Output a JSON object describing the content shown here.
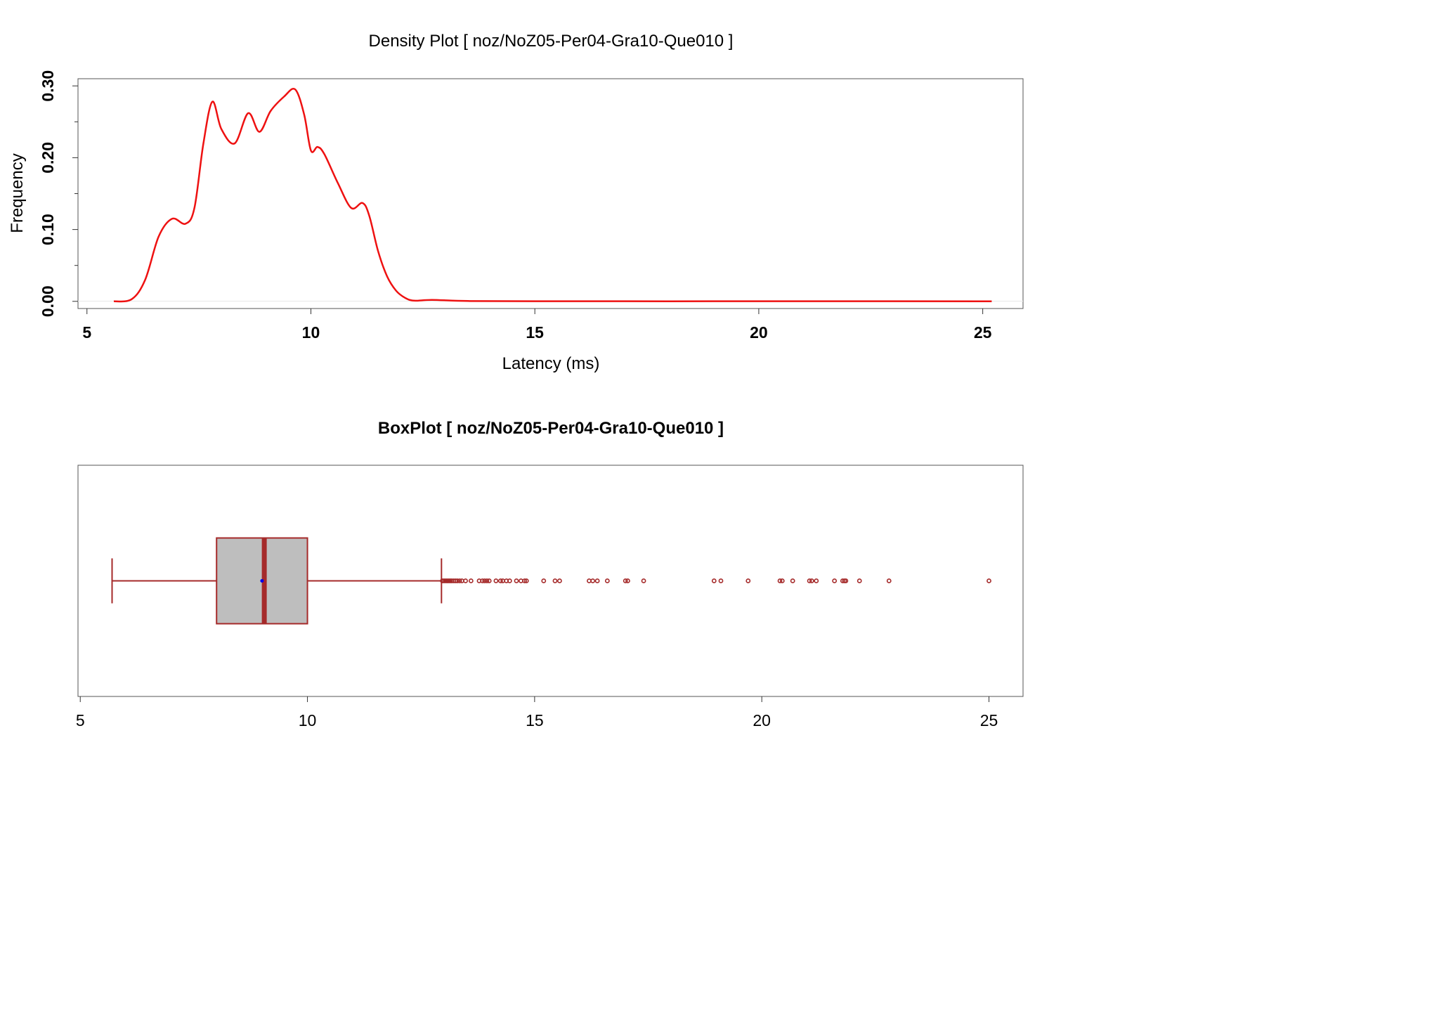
{
  "chart_data": [
    {
      "type": "line",
      "title": "Density Plot [ noz/NoZ05-Per04-Gra10-Que010 ]",
      "xlabel": "Latency (ms)",
      "ylabel": "Frequency",
      "xlim": [
        4.8,
        25.9
      ],
      "ylim": [
        -0.01,
        0.31
      ],
      "x_ticks": [
        5,
        10,
        15,
        20,
        25
      ],
      "y_ticks": [
        0.0,
        0.1,
        0.2,
        0.3
      ],
      "y_tick_labels": [
        "0.00",
        "0.10",
        "0.20",
        "0.30"
      ],
      "y_minor_ticks": [
        0.05,
        0.15,
        0.25
      ],
      "grid": false,
      "line_color": "#ee1111",
      "series": [
        {
          "x": [
            5.6,
            6.0,
            6.3,
            6.6,
            6.9,
            7.2,
            7.4,
            7.6,
            7.8,
            8.0,
            8.3,
            8.6,
            8.85,
            9.1,
            9.4,
            9.65,
            9.85,
            10.0,
            10.15,
            10.3,
            10.6,
            10.9,
            11.15,
            11.3,
            11.5,
            11.7,
            11.9,
            12.1,
            12.3,
            12.7,
            13.5,
            15.0,
            18.0,
            21.0,
            25.2
          ],
          "y": [
            0.0,
            0.003,
            0.03,
            0.09,
            0.115,
            0.108,
            0.13,
            0.22,
            0.278,
            0.24,
            0.22,
            0.262,
            0.236,
            0.265,
            0.285,
            0.295,
            0.26,
            0.21,
            0.215,
            0.205,
            0.165,
            0.13,
            0.137,
            0.12,
            0.07,
            0.035,
            0.015,
            0.005,
            0.001,
            0.002,
            0.0005,
            0.0002,
            0.0001,
            0.0002,
            0.0
          ]
        }
      ]
    },
    {
      "type": "boxplot",
      "title": "BoxPlot [ noz/NoZ05-Per04-Gra10-Que010 ]",
      "xlim": [
        4.95,
        25.75
      ],
      "x_ticks": [
        5,
        10,
        15,
        20,
        25
      ],
      "whisker_low": 5.7,
      "q1": 8.0,
      "median": 9.05,
      "mean": 9.0,
      "q3": 10.0,
      "whisker_high": 12.95,
      "outliers": [
        12.97,
        13.0,
        13.03,
        13.06,
        13.09,
        13.12,
        13.15,
        13.18,
        13.22,
        13.26,
        13.3,
        13.35,
        13.4,
        13.48,
        13.6,
        13.78,
        13.85,
        13.9,
        13.95,
        14.0,
        14.15,
        14.25,
        14.3,
        14.38,
        14.45,
        14.6,
        14.7,
        14.78,
        14.82,
        15.2,
        15.45,
        15.55,
        16.2,
        16.28,
        16.38,
        16.6,
        17.0,
        17.05,
        17.4,
        18.95,
        19.1,
        19.7,
        20.4,
        20.45,
        20.68,
        21.05,
        21.1,
        21.2,
        21.6,
        21.78,
        21.82,
        21.85,
        22.15,
        22.8,
        25.0
      ],
      "box_fill": "#bebebe",
      "line_color": "#a52a2a",
      "mean_color": "#0000ee"
    }
  ]
}
